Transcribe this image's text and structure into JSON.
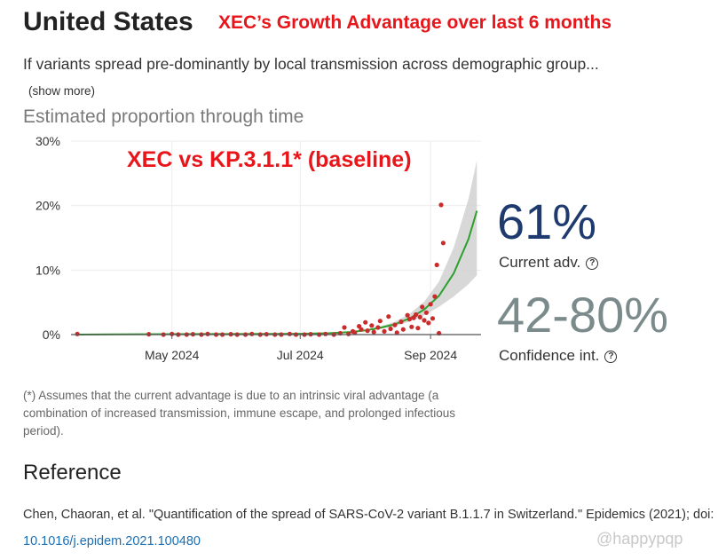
{
  "header": {
    "title": "United States",
    "annotation": "XEC’s Growth Advantage over last 6 months",
    "intro": "If variants spread pre-dominantly by local transmission across demographic group...",
    "show_more": "(show more)"
  },
  "stats": {
    "current_adv_value": "61%",
    "current_adv_label": "Current adv.",
    "ci_value": "42-80%",
    "ci_label": "Confidence int.",
    "help_glyph": "?"
  },
  "footnote": "(*) Assumes that the current advantage is due to an intrinsic viral advantage (a combination of increased transmission, immune escape, and prolonged infectious period).",
  "reference": {
    "title": "Reference",
    "text": "Chen, Chaoran, et al. \"Quantification of the spread of SARS-CoV-2 variant B.1.1.7 in Switzerland.\" Epidemics (2021); doi: ",
    "link": "10.1016/j.epidem.2021.100480"
  },
  "watermark": "@happypqp",
  "colors": {
    "annotation": "#e8161b",
    "fit_line": "#2ca02c",
    "points": "#cc2b2b",
    "ci_band": "#d4d4d4",
    "adv_value": "#1e3a6e",
    "ci_value": "#7b8a8b",
    "link": "#1a6fb5"
  },
  "chart_data": {
    "type": "line",
    "title": "Estimated proportion through time",
    "annotation": "XEC vs KP.3.1.1* (baseline)",
    "x_ticks": [
      "May 2024",
      "Jul 2024",
      "Sep 2024"
    ],
    "x_tick_dates": [
      "2024-05-01",
      "2024-07-01",
      "2024-09-01"
    ],
    "xlim": [
      "2024-03-14",
      "2024-09-25"
    ],
    "y_ticks": [
      0,
      10,
      20,
      30
    ],
    "y_tick_labels": [
      "0%",
      "10%",
      "20%",
      "30%"
    ],
    "ylim": [
      0,
      30
    ],
    "grid": true,
    "series": [
      {
        "kind": "fit",
        "dates": [
          "2024-03-17",
          "2024-04-15",
          "2024-05-15",
          "2024-06-15",
          "2024-07-01",
          "2024-07-15",
          "2024-07-25",
          "2024-08-01",
          "2024-08-08",
          "2024-08-15",
          "2024-08-22",
          "2024-08-29",
          "2024-09-05",
          "2024-09-12",
          "2024-09-19",
          "2024-09-23"
        ],
        "values": [
          0.0,
          0.05,
          0.08,
          0.1,
          0.13,
          0.22,
          0.4,
          0.65,
          1.05,
          1.6,
          2.5,
          3.9,
          6.0,
          9.5,
          14.8,
          19.2
        ]
      },
      {
        "kind": "ci",
        "dates": [
          "2024-08-01",
          "2024-08-08",
          "2024-08-15",
          "2024-08-22",
          "2024-08-29",
          "2024-09-05",
          "2024-09-12",
          "2024-09-19",
          "2024-09-23"
        ],
        "lower": [
          0.55,
          0.85,
          1.3,
          2.0,
          3.0,
          4.3,
          5.9,
          7.8,
          9.2
        ],
        "upper": [
          0.75,
          1.25,
          2.0,
          3.2,
          5.1,
          8.2,
          13.5,
          21.0,
          27.0
        ]
      },
      {
        "kind": "points",
        "dates": [
          "2024-03-17",
          "2024-04-20",
          "2024-04-27",
          "2024-05-01",
          "2024-05-04",
          "2024-05-08",
          "2024-05-11",
          "2024-05-15",
          "2024-05-18",
          "2024-05-22",
          "2024-05-25",
          "2024-05-29",
          "2024-06-01",
          "2024-06-05",
          "2024-06-08",
          "2024-06-12",
          "2024-06-15",
          "2024-06-19",
          "2024-06-22",
          "2024-06-26",
          "2024-06-29",
          "2024-07-03",
          "2024-07-06",
          "2024-07-10",
          "2024-07-13",
          "2024-07-17",
          "2024-07-20",
          "2024-07-22",
          "2024-07-24",
          "2024-07-26",
          "2024-07-27",
          "2024-07-29",
          "2024-07-30",
          "2024-08-01",
          "2024-08-02",
          "2024-08-04",
          "2024-08-05",
          "2024-08-07",
          "2024-08-08",
          "2024-08-10",
          "2024-08-12",
          "2024-08-13",
          "2024-08-15",
          "2024-08-16",
          "2024-08-18",
          "2024-08-19",
          "2024-08-21",
          "2024-08-22",
          "2024-08-23",
          "2024-08-24",
          "2024-08-25",
          "2024-08-26",
          "2024-08-27",
          "2024-08-28",
          "2024-08-29",
          "2024-08-30",
          "2024-08-31",
          "2024-09-01",
          "2024-09-02",
          "2024-09-03",
          "2024-09-04",
          "2024-09-05",
          "2024-09-06",
          "2024-09-07"
        ],
        "values": [
          0.1,
          0.05,
          0.0,
          0.1,
          0.0,
          0.0,
          0.05,
          0.0,
          0.1,
          0.0,
          0.0,
          0.05,
          0.0,
          0.0,
          0.1,
          0.0,
          0.05,
          0.0,
          0.0,
          0.1,
          0.0,
          0.0,
          0.05,
          0.0,
          0.1,
          0.0,
          0.2,
          1.1,
          0.1,
          0.5,
          0.3,
          1.3,
          0.8,
          1.9,
          0.6,
          1.4,
          0.4,
          1.1,
          2.1,
          0.5,
          2.8,
          0.9,
          1.5,
          0.3,
          2.0,
          0.8,
          3.0,
          2.4,
          1.2,
          2.6,
          3.1,
          1.0,
          2.7,
          4.3,
          2.2,
          3.4,
          1.8,
          4.7,
          2.5,
          5.9,
          10.8,
          0.2,
          20.1,
          14.2
        ]
      }
    ]
  }
}
